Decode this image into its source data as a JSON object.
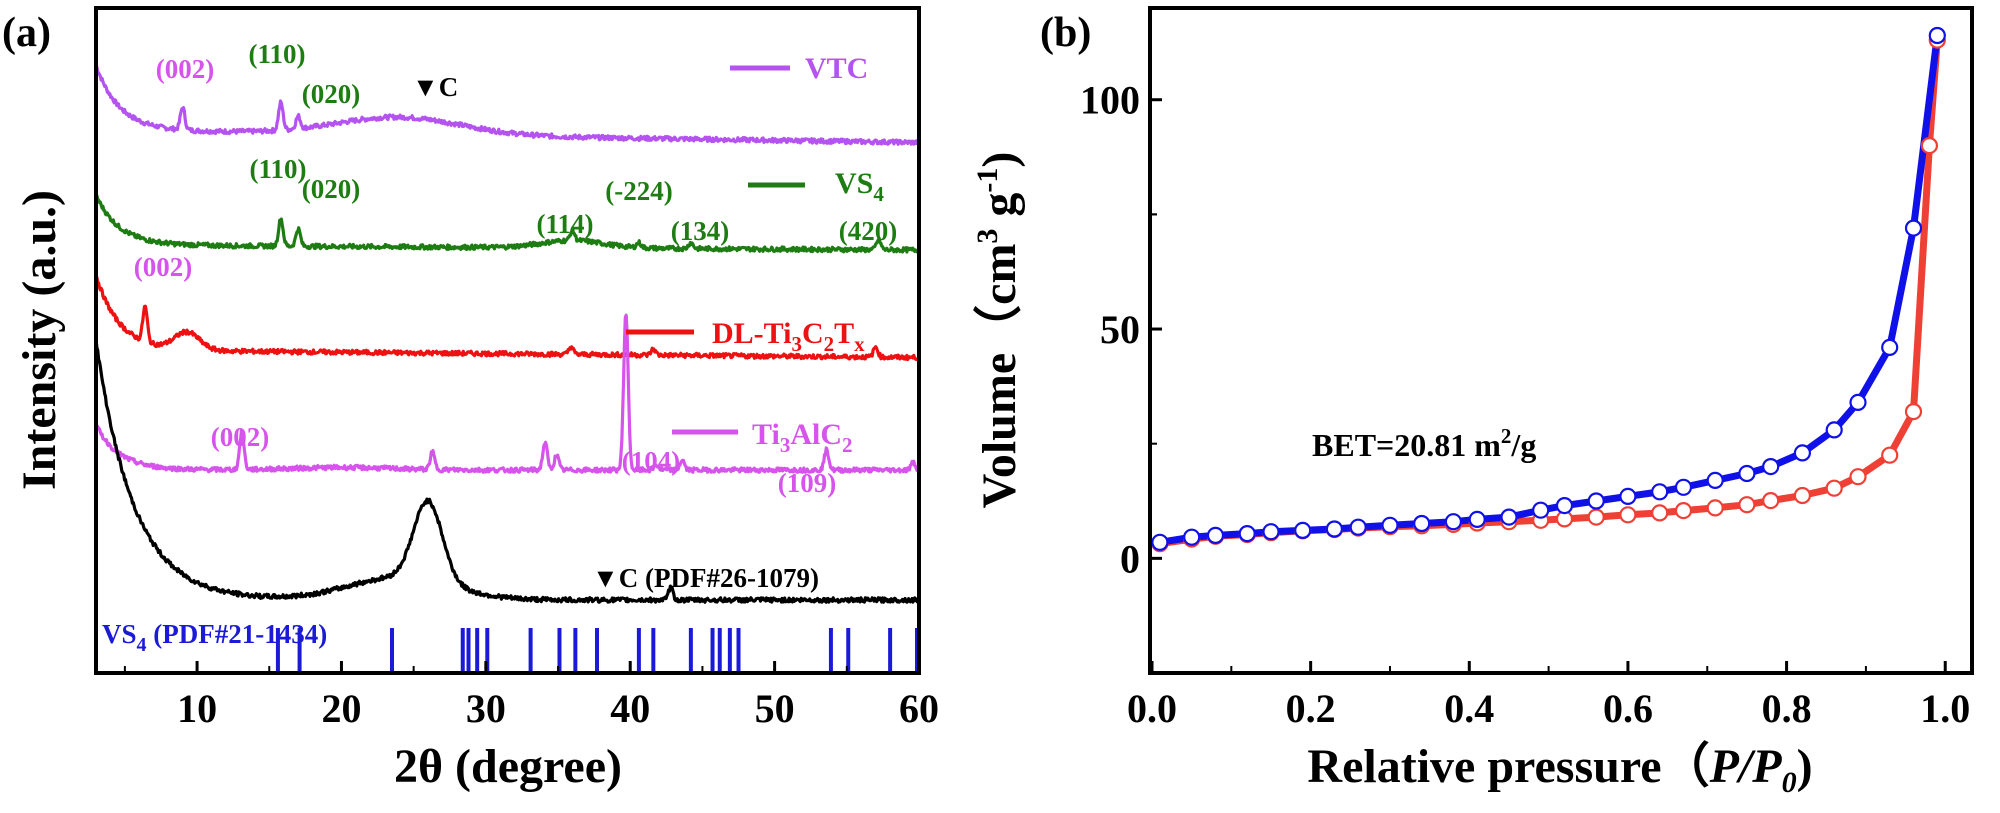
{
  "chart_data": [
    {
      "panel": "(a)",
      "type": "line",
      "xlabel": "2θ (degree)",
      "ylabel": "Intensity (a.u.)",
      "xlim": [
        3,
        60
      ],
      "x_ticks": [
        "10",
        "20",
        "30",
        "40",
        "50",
        "60"
      ],
      "series": [
        {
          "name": "VTC",
          "color": "#b553f0",
          "baseline": 8.6,
          "start_rise": 1.3,
          "hump": {
            "x": 24,
            "h": 0.35,
            "w": 6
          },
          "tail": -0.25,
          "peaks": [
            [
              9.0,
              0.45
            ],
            [
              15.8,
              0.55
            ],
            [
              17.0,
              0.25
            ]
          ]
        },
        {
          "name": "VS4",
          "name_sub": "4",
          "name_main": "VS",
          "color": "#1e7d12",
          "baseline": 6.3,
          "start_rise": 1.0,
          "hump": {
            "x": 36,
            "h": 0.15,
            "w": 3
          },
          "tail": -0.1,
          "peaks": [
            [
              15.8,
              0.55
            ],
            [
              17.0,
              0.35
            ],
            [
              36.0,
              0.2
            ],
            [
              40.6,
              0.1
            ],
            [
              44.2,
              0.12
            ],
            [
              57.2,
              0.2
            ]
          ]
        },
        {
          "name": "DL-Ti3C2Tx",
          "name_main": "DL-Ti",
          "color": "#ee1111",
          "baseline": 4.2,
          "start_rise": 1.5,
          "hump": {
            "x": 9.3,
            "h": 0.35,
            "w": 1.2
          },
          "tail": -0.15,
          "peaks": [
            [
              6.4,
              0.7
            ],
            [
              35.9,
              0.15
            ],
            [
              41.6,
              0.12
            ],
            [
              57.0,
              0.2
            ]
          ]
        },
        {
          "name": "Ti3AlC2",
          "name_main": "Ti",
          "color": "#d653ec",
          "baseline": 1.8,
          "start_rise": 0.9,
          "hump": {
            "x": 20,
            "h": 0.05,
            "w": 5
          },
          "tail": 0,
          "peaks": [
            [
              13.1,
              0.75
            ],
            [
              26.3,
              0.35
            ],
            [
              34.1,
              0.55
            ],
            [
              34.9,
              0.3
            ],
            [
              39.7,
              3.15
            ],
            [
              41.8,
              0.1
            ],
            [
              43.6,
              0.2
            ],
            [
              53.6,
              0.4
            ],
            [
              59.6,
              0.15
            ]
          ]
        },
        {
          "name": "C",
          "color": "#000000",
          "baseline": -0.8,
          "start_rise": 5.2,
          "hump": {
            "x": 26.0,
            "h": 1.6,
            "w": 1.4
          },
          "tail": 0,
          "broad": {
            "x": 24,
            "h": 0.45,
            "w": 5
          },
          "peaks": [
            [
              42.8,
              0.25
            ]
          ]
        }
      ],
      "reference_sticks": {
        "label": "VS4 (PDF#21-1434)",
        "label_main": "VS",
        "label_sub": "4",
        "label_rest": " (PDF#21-1434)",
        "color": "#1a1ad8",
        "positions": [
          15.6,
          17.1,
          23.5,
          28.4,
          28.8,
          29.4,
          30.1,
          33.1,
          35.1,
          36.2,
          37.7,
          40.6,
          41.6,
          44.2,
          45.7,
          46.2,
          46.9,
          47.5,
          53.9,
          55.1,
          58.0,
          60.0
        ]
      },
      "annotations": {
        "vtc_002": "(002)",
        "vtc_110": "(110)",
        "vtc_020": "(020)",
        "vtc_c": "▼C",
        "vs4_110": "(110)",
        "vs4_020": "(020)",
        "vs4_114": "(114)",
        "vs4_m224": "(-224)",
        "vs4_134": "(134)",
        "vs4_420": "(420)",
        "dl_002": "(002)",
        "ti_002": "(002)",
        "ti_104": "(104)",
        "ti_109": "(109)",
        "c_pdf": "▼C (PDF#26-1079)"
      },
      "legend": {
        "vtc": "VTC",
        "vs4_main": "VS",
        "vs4_sub": "4",
        "dl_main": "DL-Ti",
        "dl_sub1": "3",
        "dl_mid": "C",
        "dl_sub2": "2",
        "dl_end": "T",
        "dl_sub3": "x",
        "ti_main": "Ti",
        "ti_sub1": "3",
        "ti_mid": "AlC",
        "ti_sub2": "2"
      }
    },
    {
      "panel": "(b)",
      "type": "line",
      "xlabel_main": "Relative pressure（",
      "xlabel_italic": "P/P",
      "xlabel_sub": "0",
      "xlabel_end": ")",
      "ylabel_main": "Volume（cm",
      "ylabel_sup1": "3",
      "ylabel_mid": " g",
      "ylabel_sup2": "-1",
      "ylabel_end": ")",
      "xlim": [
        0,
        1.0
      ],
      "ylim": [
        -25,
        120
      ],
      "x_ticks": [
        "0.0",
        "0.2",
        "0.4",
        "0.6",
        "0.8",
        "1.0"
      ],
      "x_tick_values": [
        0,
        0.2,
        0.4,
        0.6,
        0.8,
        1.0
      ],
      "y_ticks": [
        "0",
        "50",
        "100"
      ],
      "y_tick_values": [
        0,
        50,
        100
      ],
      "bet_main": "BET=20.81 m",
      "bet_sup": "2",
      "bet_end": "/g",
      "series": [
        {
          "name": "adsorption",
          "color": "#ee4035",
          "x": [
            0.01,
            0.05,
            0.08,
            0.12,
            0.15,
            0.19,
            0.23,
            0.26,
            0.3,
            0.34,
            0.38,
            0.41,
            0.45,
            0.49,
            0.52,
            0.56,
            0.6,
            0.64,
            0.67,
            0.71,
            0.75,
            0.78,
            0.82,
            0.86,
            0.89,
            0.93,
            0.96,
            0.98,
            0.99
          ],
          "y": [
            3.2,
            4.2,
            4.8,
            5.2,
            5.6,
            6.0,
            6.3,
            6.6,
            6.9,
            7.1,
            7.4,
            7.7,
            8.0,
            8.3,
            8.6,
            9.0,
            9.5,
            9.9,
            10.4,
            11.0,
            11.7,
            12.6,
            13.7,
            15.3,
            17.8,
            22.5,
            32,
            90,
            113
          ]
        },
        {
          "name": "desorption",
          "color": "#1010e8",
          "x": [
            0.99,
            0.96,
            0.93,
            0.89,
            0.86,
            0.82,
            0.78,
            0.75,
            0.71,
            0.67,
            0.64,
            0.6,
            0.56,
            0.52,
            0.49,
            0.45,
            0.41,
            0.38,
            0.34,
            0.3,
            0.26,
            0.23,
            0.19,
            0.15,
            0.12,
            0.08,
            0.05,
            0.01
          ],
          "y": [
            114,
            72,
            46,
            34,
            28,
            23,
            20,
            18.5,
            17,
            15.5,
            14.5,
            13.5,
            12.5,
            11.5,
            10.5,
            9.0,
            8.5,
            8.0,
            7.6,
            7.2,
            6.8,
            6.4,
            6.1,
            5.8,
            5.4,
            5.0,
            4.6,
            3.5
          ]
        }
      ]
    }
  ]
}
